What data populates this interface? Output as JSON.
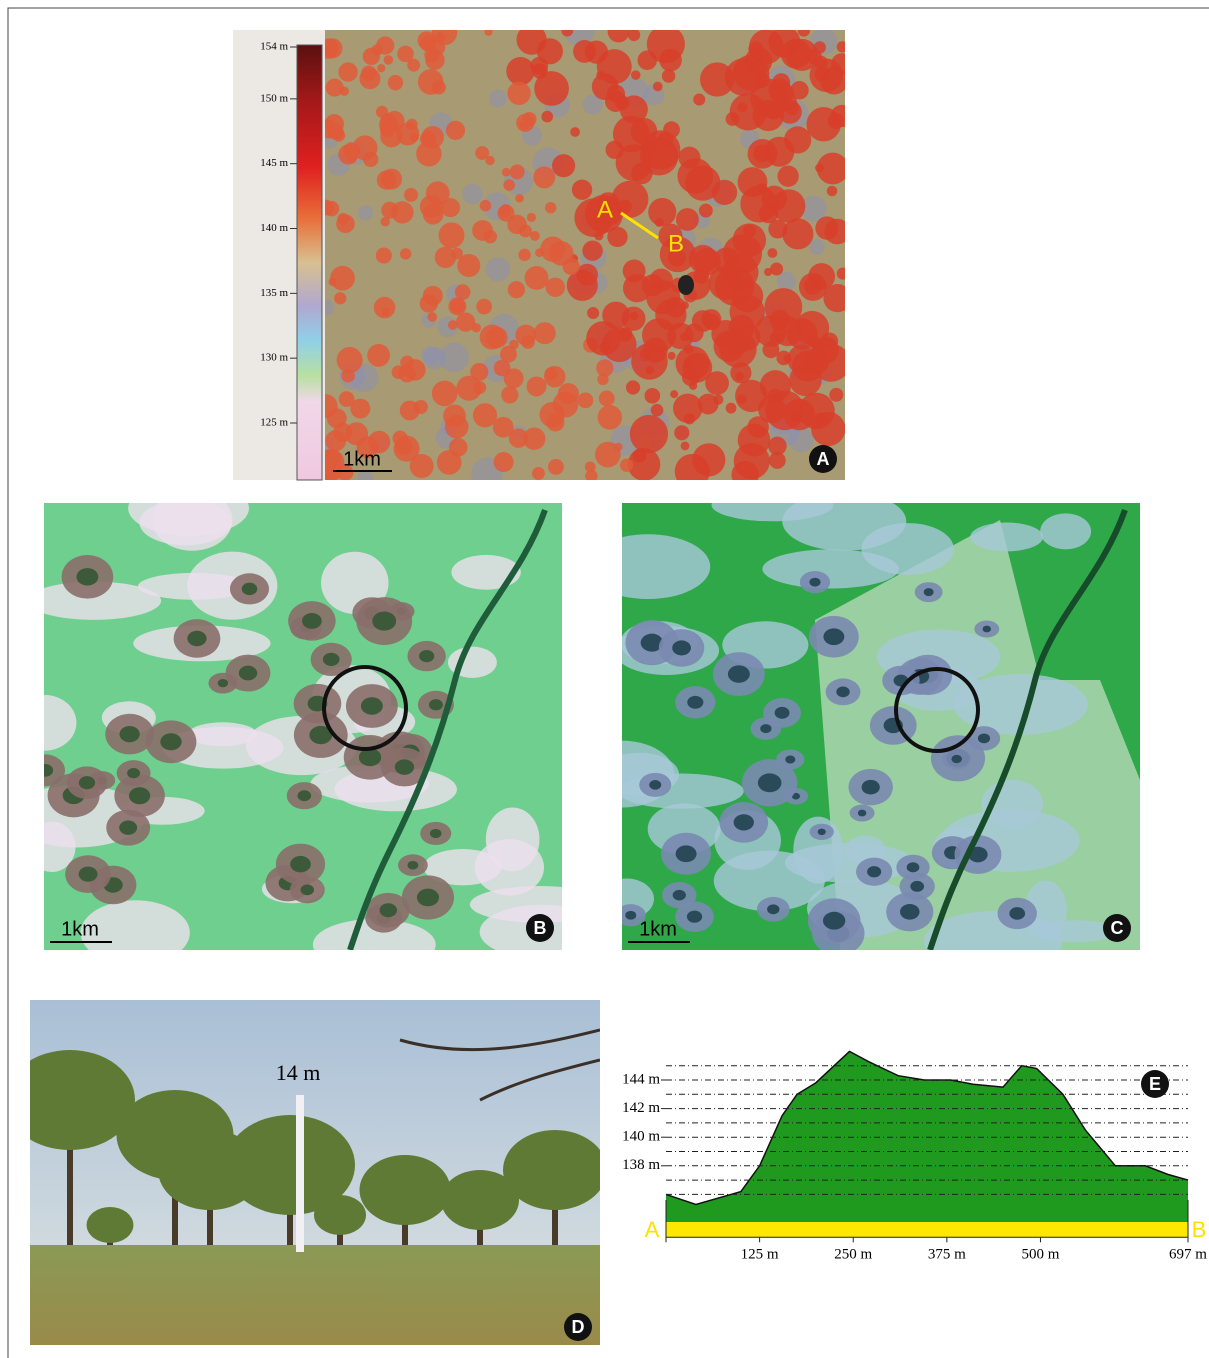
{
  "panel_a": {
    "colorbar": {
      "ticks": [
        {
          "value": 154,
          "label": "154 m"
        },
        {
          "value": 150,
          "label": "150 m"
        },
        {
          "value": 145,
          "label": "145 m"
        },
        {
          "value": 140,
          "label": "140 m"
        },
        {
          "value": 135,
          "label": "135 m"
        },
        {
          "value": 130,
          "label": "130 m"
        },
        {
          "value": 125,
          "label": "125 m"
        }
      ]
    },
    "scale_bar": "1km",
    "profile_start": "A",
    "profile_end": "B",
    "label": "A"
  },
  "panel_b": {
    "scale_bar": "1km",
    "label": "B"
  },
  "panel_c": {
    "scale_bar": "1km",
    "label": "C"
  },
  "panel_d": {
    "height_label": "14 m",
    "label": "D"
  },
  "chart_data": {
    "type": "area",
    "label": "E",
    "x": [
      0,
      40,
      100,
      125,
      155,
      175,
      200,
      245,
      270,
      310,
      345,
      380,
      410,
      450,
      475,
      495,
      530,
      560,
      600,
      640,
      670,
      697
    ],
    "values": [
      136,
      135.3,
      136.2,
      138,
      141.5,
      143,
      143.8,
      146,
      145.3,
      144.3,
      144,
      144,
      143.7,
      143.5,
      145,
      144.8,
      143,
      140.5,
      138,
      138,
      137.4,
      137
    ],
    "color": "#1f9a1f",
    "xlim": [
      0,
      697
    ],
    "ylim": [
      133,
      146.5
    ],
    "yticks": [
      {
        "value": 138,
        "label": "138 m"
      },
      {
        "value": 140,
        "label": "140 m"
      },
      {
        "value": 142,
        "label": "142 m"
      },
      {
        "value": 144,
        "label": "144 m"
      }
    ],
    "y_minor_ticks": [
      136,
      137,
      138,
      139,
      140,
      141,
      142,
      143,
      144,
      145
    ],
    "xticks": [
      {
        "value": 125,
        "label": "125 m"
      },
      {
        "value": 250,
        "label": "250 m"
      },
      {
        "value": 375,
        "label": "375 m"
      },
      {
        "value": 500,
        "label": "500 m"
      },
      {
        "value": 697,
        "label": "697 m"
      }
    ],
    "start_label": "A",
    "end_label": "B"
  }
}
